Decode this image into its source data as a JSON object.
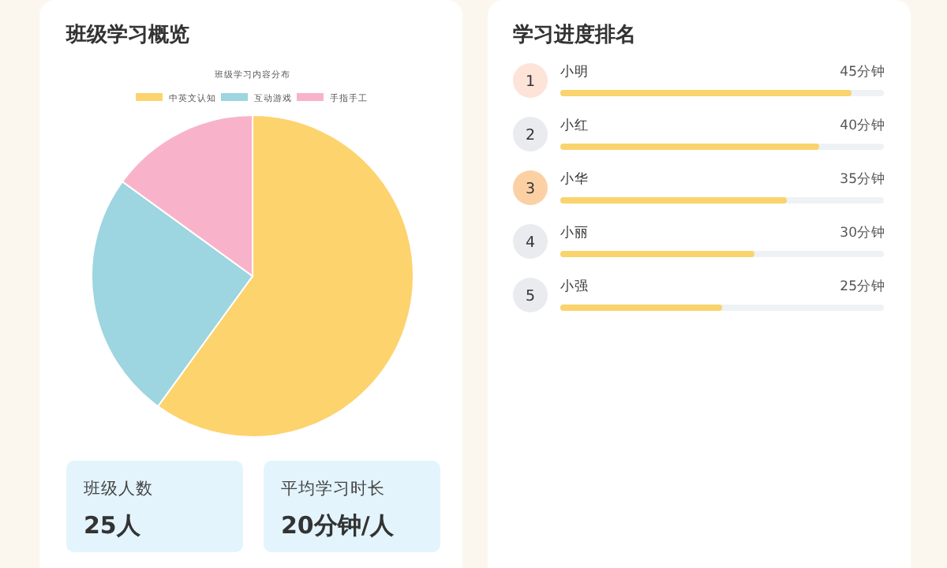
{
  "chart_data": [
    {
      "type": "pie",
      "title": "班级学习概览",
      "subtitle": "班级学习内容分布",
      "categories": [
        "中英文认知",
        "互动游戏",
        "手指手工"
      ],
      "values": [
        60,
        25,
        15
      ],
      "colors": [
        "#fdd36e",
        "#9dd5e0",
        "#f8b3cb"
      ],
      "legend": "top"
    },
    {
      "type": "other",
      "annotations": [
        "班级人数",
        "25人",
        "平均学习时长",
        "20分钟/人"
      ]
    },
    {
      "type": "bar",
      "orientation": "horizontal",
      "title": "学习进度排名",
      "categories": [
        "小明",
        "小红",
        "小华",
        "小丽",
        "小强"
      ],
      "values": [
        45,
        40,
        35,
        30,
        25
      ],
      "value_labels": [
        "45分钟",
        "40分钟",
        "35分钟",
        "30分钟",
        "25分钟"
      ],
      "xlim": [
        0,
        50
      ],
      "color": "#f9d36c",
      "annotations": [
        "1",
        "2",
        "3",
        "4",
        "5"
      ]
    }
  ]
}
